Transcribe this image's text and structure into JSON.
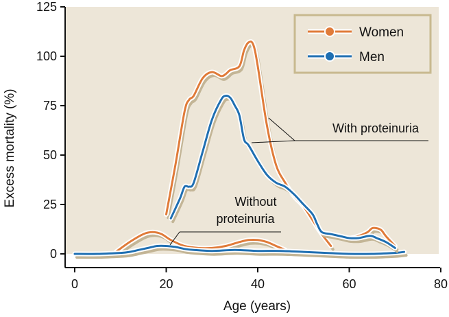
{
  "chart_data": {
    "type": "line",
    "xlabel": "Age (years)",
    "ylabel": "Excess mortality (%)",
    "xlim": [
      0,
      80
    ],
    "ylim": [
      0,
      125
    ],
    "xticks": [
      0,
      20,
      40,
      60,
      80
    ],
    "yticks": [
      0,
      25,
      50,
      75,
      100,
      125
    ],
    "grid": false,
    "legend_position": "top-right",
    "series": [
      {
        "name": "Women",
        "group": "With proteinuria",
        "color": "#e07b39",
        "x": [
          20,
          22,
          24,
          25,
          26,
          28,
          30,
          32,
          33,
          34,
          36,
          37,
          38,
          39,
          40,
          42,
          44,
          46,
          48,
          50,
          52,
          54,
          56
        ],
        "y": [
          20,
          45,
          72,
          78,
          80,
          89,
          92,
          90,
          91,
          93,
          95,
          103,
          107,
          106,
          95,
          65,
          45,
          36,
          29,
          24,
          17,
          10,
          4
        ]
      },
      {
        "name": "Men",
        "group": "With proteinuria",
        "color": "#1f6fb2",
        "x": [
          21,
          23,
          24,
          25,
          26,
          28,
          30,
          32,
          33,
          34,
          35,
          36,
          37,
          38,
          40,
          42,
          44,
          46,
          48,
          50,
          52,
          53,
          54,
          56,
          58,
          60,
          62,
          64,
          65,
          66,
          68,
          70
        ],
        "y": [
          18,
          28,
          34,
          34,
          36,
          52,
          68,
          78,
          80,
          79,
          75,
          70,
          58,
          55,
          47,
          40,
          36,
          34,
          30,
          25,
          20,
          15,
          11,
          10,
          9,
          8,
          8,
          9,
          9,
          8,
          6,
          3
        ]
      },
      {
        "name": "Women",
        "group": "Without proteinuria",
        "color": "#e07b39",
        "x": [
          9,
          12,
          15,
          17,
          19,
          21,
          24,
          27,
          30,
          33,
          36,
          38,
          40,
          42,
          44,
          46
        ],
        "y": [
          1,
          6,
          10,
          11,
          10,
          7,
          4,
          3,
          3,
          4,
          6,
          7,
          7,
          6,
          4,
          2
        ]
      },
      {
        "name": "Women",
        "group": "Without proteinuria",
        "color": "#e07b39",
        "x": [
          56,
          58,
          60,
          62,
          64,
          65,
          66,
          67,
          68,
          70
        ],
        "y": [
          10,
          9,
          8,
          9,
          11,
          13,
          13,
          12,
          9,
          4
        ]
      },
      {
        "name": "Men",
        "group": "Without proteinuria",
        "color": "#1f6fb2",
        "x": [
          0,
          5,
          10,
          12,
          14,
          16,
          18,
          20,
          22,
          24,
          26,
          30,
          35,
          40,
          45,
          50,
          55,
          60,
          65,
          70,
          72
        ],
        "y": [
          0,
          0,
          0.5,
          1,
          2,
          3,
          4,
          4,
          3.5,
          2.5,
          2,
          1.5,
          2,
          1.5,
          1.5,
          1,
          0.5,
          0,
          0,
          0.5,
          1
        ]
      }
    ],
    "annotations": [
      "With proteinuria",
      "Without",
      "proteinuria"
    ]
  },
  "legend": {
    "items": [
      {
        "label": "Women",
        "color": "#e07b39"
      },
      {
        "label": "Men",
        "color": "#1f6fb2"
      }
    ]
  },
  "colors": {
    "background": "#ede6d8",
    "shadow": "#c3b596",
    "legend_border": "#c8b98f"
  }
}
